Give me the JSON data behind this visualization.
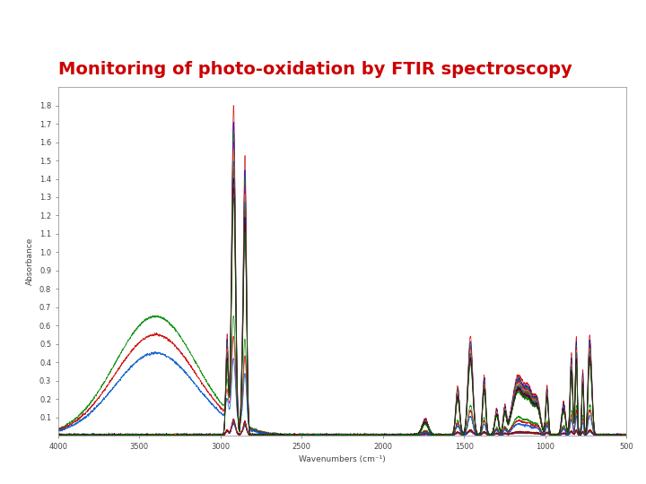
{
  "title": "Monitoring of photo-oxidation by FTIR spectroscopy",
  "title_color": "#cc0000",
  "title_fontsize": 14,
  "xlabel": "Wavenumbers (cm⁻¹)",
  "ylabel": "Absorbance",
  "xlim": [
    4000,
    500
  ],
  "ylim": [
    0.0,
    1.9
  ],
  "yticks": [
    0.1,
    0.2,
    0.3,
    0.4,
    0.5,
    0.6,
    0.7,
    0.8,
    0.9,
    1.0,
    1.1,
    1.2,
    1.3,
    1.4,
    1.5,
    1.6,
    1.7,
    1.8
  ],
  "xticks": [
    4000,
    3500,
    3000,
    2500,
    2000,
    1500,
    1000,
    500
  ],
  "background_color": "#ffffff",
  "plot_bg_color": "#ffffff",
  "line_width": 0.5
}
